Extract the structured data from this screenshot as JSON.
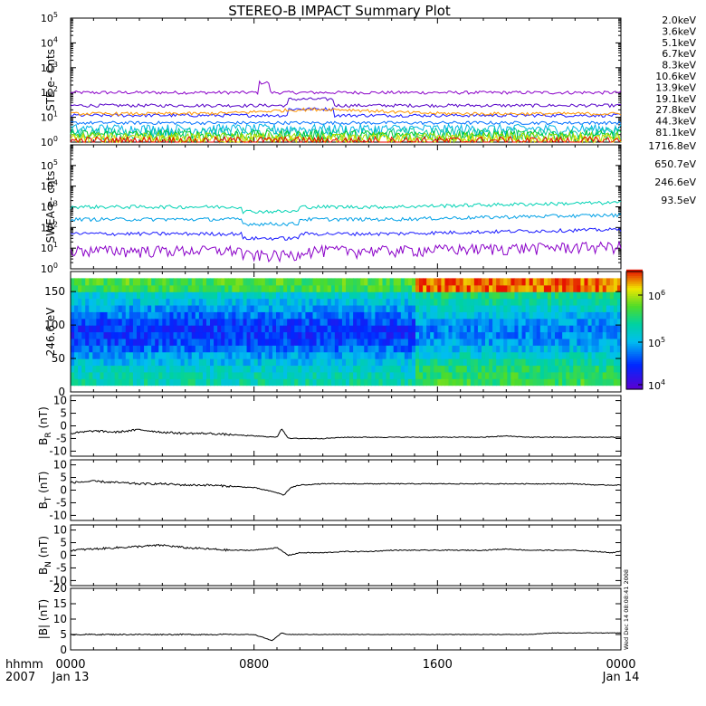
{
  "title": "STEREO-B IMPACT Summary Plot",
  "time_axis": {
    "row1_label": "hhmm",
    "row2_label": "2007",
    "ticks": [
      {
        "hour": 0,
        "label": "0000",
        "date": "Jan 13"
      },
      {
        "hour": 8,
        "label": "0800",
        "date": ""
      },
      {
        "hour": 16,
        "label": "1600",
        "date": ""
      },
      {
        "hour": 24,
        "label": "0000",
        "date": "Jan 14"
      }
    ]
  },
  "side_stamp": "Wed Dec 14 08:08:41 2008",
  "panels": {
    "ste": {
      "ylabel": "STE e- Cnts",
      "ytick_base": "10",
      "ytick_exps": [
        "0",
        "1",
        "2",
        "3",
        "4",
        "5"
      ]
    },
    "swea": {
      "ylabel": "SWEA e- cnts",
      "ytick_base": "10",
      "ytick_exps": [
        "0",
        "1",
        "2",
        "3",
        "4",
        "5"
      ]
    },
    "pad": {
      "ylabel": "246.6 eV",
      "yticks": [
        "0",
        "50",
        "100",
        "150"
      ],
      "colorbar_base": "10",
      "colorbar_exps": [
        "4",
        "5",
        "6"
      ]
    },
    "br": {
      "ylabel_main": "B",
      "ylabel_sub": "R",
      "ylabel_unit": "(nT)",
      "yticks": [
        "-10",
        "-5",
        "0",
        "5",
        "10"
      ]
    },
    "bt": {
      "ylabel_main": "B",
      "ylabel_sub": "T",
      "ylabel_unit": "(nT)",
      "yticks": [
        "-10",
        "-5",
        "0",
        "5",
        "10"
      ]
    },
    "bn": {
      "ylabel_main": "B",
      "ylabel_sub": "N",
      "ylabel_unit": "(nT)",
      "yticks": [
        "-10",
        "-5",
        "0",
        "5",
        "10"
      ]
    },
    "bmag": {
      "ylabel_main": "|B|",
      "ylabel_sub": "",
      "ylabel_unit": "(nT)",
      "yticks": [
        "0",
        "5",
        "10",
        "15",
        "20"
      ]
    }
  },
  "chart_data": [
    {
      "type": "line",
      "panel": "STE electron counts",
      "ylabel": "STE e- Cnts",
      "y_scale": "log",
      "ylim": [
        1,
        100000
      ],
      "xlim_hours": [
        0,
        24
      ],
      "series": [
        {
          "name": "2.0keV",
          "color": "#8a00c8",
          "level": 100
        },
        {
          "name": "3.6keV",
          "color": "#5500c8",
          "level": 30
        },
        {
          "name": "5.1keV",
          "color": "#1a1aff",
          "level": 12
        },
        {
          "name": "6.7keV",
          "color": "#0070ff",
          "level": 6
        },
        {
          "name": "8.3keV",
          "color": "#00b4e6",
          "level": 3.5
        },
        {
          "name": "10.6keV",
          "color": "#00c8a0",
          "level": 2.5
        },
        {
          "name": "13.9keV",
          "color": "#00c832",
          "level": 2
        },
        {
          "name": "19.1keV",
          "color": "#96dc00",
          "level": 1.6
        },
        {
          "name": "27.8keV",
          "color": "#dcdc00",
          "level": 1.3
        },
        {
          "name": "44.3keV",
          "color": "#ff9600",
          "level": 14
        },
        {
          "name": "81.1keV",
          "color": "#e60000",
          "level": 1.1
        }
      ]
    },
    {
      "type": "line",
      "panel": "SWEA electron counts",
      "ylabel": "SWEA e- cnts",
      "y_scale": "log",
      "ylim": [
        1,
        1000000
      ],
      "xlim_hours": [
        0,
        24
      ],
      "series": [
        {
          "name": "1716.8eV",
          "color": "#8a00c8",
          "level": 8
        },
        {
          "name": "650.7eV",
          "color": "#1a1aff",
          "level": 50
        },
        {
          "name": "246.6eV",
          "color": "#00a0e6",
          "level": 250
        },
        {
          "name": "93.5eV",
          "color": "#00d2b4",
          "level": 1000
        }
      ]
    },
    {
      "type": "heatmap",
      "panel": "246.6 eV pitch angle distribution",
      "ylabel": "246.6 eV",
      "ylim": [
        0,
        180
      ],
      "xlim_hours": [
        0,
        24
      ],
      "colorbar_range": [
        10000,
        3000000
      ],
      "colorbar_scale": "log"
    },
    {
      "type": "line",
      "panel": "BR",
      "ylabel": "BR (nT)",
      "ylim": [
        -12,
        12
      ],
      "xlim_hours": [
        0,
        24
      ],
      "series": [
        {
          "color": "#000000",
          "x": [
            0,
            1,
            2,
            3,
            4,
            5,
            6,
            7,
            8,
            9,
            9.2,
            9.5,
            10,
            11,
            12,
            13,
            14,
            15,
            16,
            17,
            18,
            19,
            20,
            21,
            22,
            23,
            24
          ],
          "y": [
            -3,
            -2,
            -2.5,
            -1.5,
            -2.5,
            -3,
            -3,
            -3.5,
            -4,
            -4.5,
            -1,
            -5,
            -5,
            -5,
            -4.5,
            -4.5,
            -4.5,
            -4.5,
            -4.5,
            -4.5,
            -4.5,
            -4,
            -4.5,
            -4.5,
            -4.5,
            -4.5,
            -4.5
          ]
        }
      ]
    },
    {
      "type": "line",
      "panel": "BT",
      "ylabel": "BT (nT)",
      "ylim": [
        -12,
        12
      ],
      "xlim_hours": [
        0,
        24
      ],
      "series": [
        {
          "color": "#000000",
          "x": [
            0,
            1,
            2,
            3,
            4,
            5,
            6,
            7,
            8,
            8.5,
            9,
            9.3,
            9.6,
            10,
            11,
            12,
            13,
            14,
            15,
            16,
            17,
            18,
            19,
            20,
            21,
            22,
            23,
            24
          ],
          "y": [
            3,
            3.5,
            3,
            2.5,
            2.5,
            2,
            2,
            1.5,
            1,
            0,
            -1,
            -2,
            1,
            2,
            2.5,
            2.5,
            2.5,
            2.5,
            2.5,
            2.5,
            2.5,
            2.5,
            2.5,
            2.5,
            2.5,
            2.5,
            2,
            2
          ]
        }
      ]
    },
    {
      "type": "line",
      "panel": "BN",
      "ylabel": "BN (nT)",
      "ylim": [
        -12,
        12
      ],
      "xlim_hours": [
        0,
        24
      ],
      "series": [
        {
          "color": "#000000",
          "x": [
            0,
            1,
            2,
            3,
            4,
            5,
            6,
            7,
            8,
            9,
            9.5,
            10,
            11,
            12,
            13,
            14,
            15,
            16,
            17,
            18,
            19,
            20,
            21,
            22,
            23,
            23.5,
            24
          ],
          "y": [
            2,
            2.5,
            3,
            3.5,
            4,
            3,
            2.5,
            2,
            2,
            3,
            0,
            1,
            1,
            1.5,
            1.5,
            2,
            2,
            2,
            2,
            2,
            2.5,
            2,
            2,
            2,
            1.5,
            1,
            1.5
          ]
        }
      ]
    },
    {
      "type": "line",
      "panel": "|B|",
      "ylabel": "|B| (nT)",
      "ylim": [
        0,
        20
      ],
      "xlim_hours": [
        0,
        24
      ],
      "series": [
        {
          "color": "#000000",
          "x": [
            0,
            1,
            2,
            3,
            4,
            5,
            6,
            7,
            8,
            8.8,
            9.2,
            9.5,
            10,
            11,
            12,
            13,
            14,
            15,
            16,
            17,
            18,
            19,
            20,
            21,
            22,
            23,
            24
          ],
          "y": [
            5,
            5,
            5,
            5,
            5,
            5,
            5,
            5,
            5,
            3,
            5.5,
            5,
            5,
            5,
            5,
            5,
            5,
            5,
            5,
            5,
            5,
            5,
            5,
            5.5,
            5.5,
            5.5,
            5.5
          ]
        }
      ]
    }
  ]
}
